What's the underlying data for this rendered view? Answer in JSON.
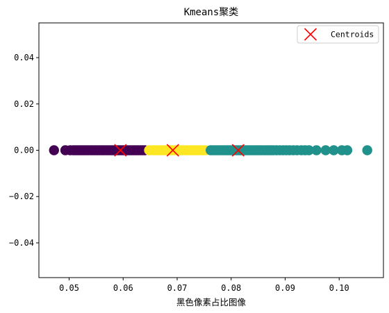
{
  "chart_data": {
    "type": "scatter",
    "title": "Kmeans聚类",
    "xlabel": "黑色像素占比图像",
    "ylabel": "",
    "xlim": [
      0.0444,
      0.1082
    ],
    "ylim": [
      -0.055,
      0.055
    ],
    "x_ticks": [
      {
        "value": 0.05,
        "label": "0.05"
      },
      {
        "value": 0.06,
        "label": "0.06"
      },
      {
        "value": 0.07,
        "label": "0.07"
      },
      {
        "value": 0.08,
        "label": "0.08"
      },
      {
        "value": 0.09,
        "label": "0.09"
      },
      {
        "value": 0.1,
        "label": "0.10"
      }
    ],
    "y_ticks": [
      {
        "value": 0.04,
        "label": "0.04"
      },
      {
        "value": 0.02,
        "label": "0.02"
      },
      {
        "value": 0.0,
        "label": "0.00"
      },
      {
        "value": -0.02,
        "label": "−0.02"
      },
      {
        "value": -0.04,
        "label": "−0.04"
      }
    ],
    "grid": false,
    "legend": {
      "position": "top-right",
      "entries": [
        "Centroids"
      ]
    },
    "series": [
      {
        "color": "#440154",
        "y": 0,
        "x": [
          0.0472,
          0.0493,
          0.0502,
          0.0508,
          0.0512,
          0.0516,
          0.052,
          0.0524,
          0.0528,
          0.0532,
          0.0536,
          0.054,
          0.0544,
          0.0548,
          0.0552,
          0.0556,
          0.056,
          0.0564,
          0.0568,
          0.0572,
          0.0576,
          0.058,
          0.0584,
          0.0588,
          0.0592,
          0.0596,
          0.06,
          0.0604,
          0.0608,
          0.0612,
          0.0616,
          0.062,
          0.0624,
          0.0628,
          0.0632,
          0.0636,
          0.064
        ]
      },
      {
        "color": "#fde725",
        "y": 0,
        "x": [
          0.0648,
          0.0652,
          0.0656,
          0.066,
          0.0664,
          0.0668,
          0.0672,
          0.0676,
          0.068,
          0.0684,
          0.0688,
          0.0692,
          0.0696,
          0.07,
          0.0704,
          0.0708,
          0.0712,
          0.0716,
          0.072,
          0.0724,
          0.0728,
          0.0732,
          0.0736,
          0.074,
          0.0744,
          0.0748,
          0.0752
        ]
      },
      {
        "color": "#21918c",
        "y": 0,
        "x": [
          0.0762,
          0.0766,
          0.077,
          0.0774,
          0.0778,
          0.0782,
          0.0786,
          0.079,
          0.0794,
          0.0798,
          0.0802,
          0.0806,
          0.081,
          0.0814,
          0.0818,
          0.0822,
          0.0826,
          0.083,
          0.0834,
          0.0838,
          0.0842,
          0.0846,
          0.085,
          0.0854,
          0.0858,
          0.0862,
          0.0866,
          0.087,
          0.0874,
          0.0878,
          0.0884,
          0.089,
          0.0896,
          0.0902,
          0.0908,
          0.0915,
          0.0922,
          0.093,
          0.0937,
          0.0944,
          0.0958,
          0.0975,
          0.099,
          0.1005,
          0.1015,
          0.1052
        ]
      }
    ],
    "centroids": {
      "name": "Centroids",
      "color": "#ff0000",
      "marker": "x",
      "points": [
        {
          "x": 0.0595,
          "y": 0
        },
        {
          "x": 0.0692,
          "y": 0
        },
        {
          "x": 0.0813,
          "y": 0
        }
      ]
    }
  }
}
